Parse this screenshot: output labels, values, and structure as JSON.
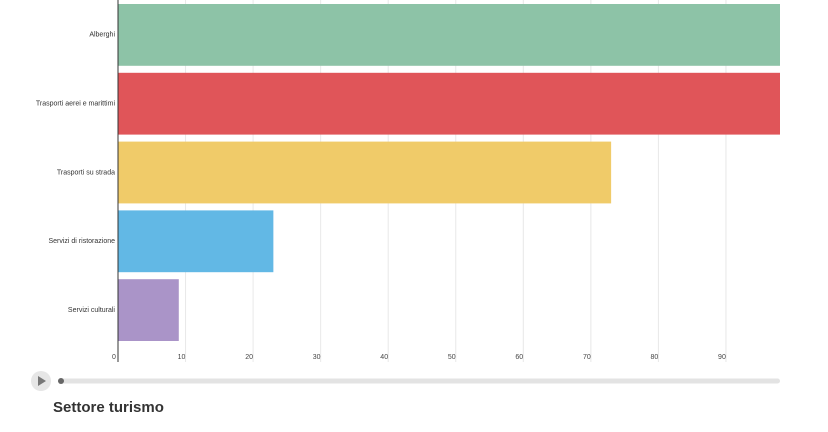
{
  "chart_data": {
    "type": "bar",
    "orientation": "horizontal",
    "title": "Settore turismo",
    "categories": [
      "Alberghi",
      "Trasporti aerei e marittimi",
      "Trasporti su strada",
      "Servizi di ristorazione",
      "Servizi culturali"
    ],
    "values": [
      98,
      98,
      73,
      23,
      9
    ],
    "colors": [
      "#8dc3a7",
      "#e05559",
      "#f0cb69",
      "#62b8e5",
      "#aa94c8"
    ],
    "xlim": [
      0,
      98
    ],
    "xticks": [
      0,
      10,
      20,
      30,
      40,
      50,
      60,
      70,
      80,
      90
    ],
    "grid": true
  }
}
